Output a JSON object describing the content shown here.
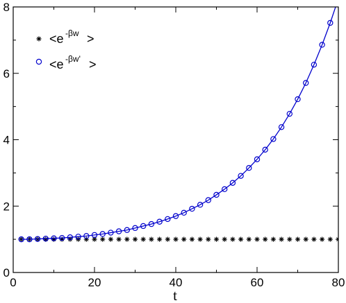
{
  "chart_data": {
    "type": "line",
    "title": "",
    "xlabel": "t",
    "ylabel": "",
    "xlim": [
      0,
      80
    ],
    "ylim": [
      0,
      8
    ],
    "xticks": [
      0,
      20,
      40,
      60,
      80
    ],
    "yticks": [
      0,
      2,
      4,
      6,
      8
    ],
    "grid": false,
    "legend_position": "top-left",
    "series": [
      {
        "name": "<e^{-βw}>",
        "legend_main": "<e",
        "legend_sup": "-βw",
        "legend_tail": ">",
        "marker": "asterisk",
        "color": "#000000",
        "x": [
          2,
          4,
          6,
          8,
          10,
          12,
          14,
          16,
          18,
          20,
          22,
          24,
          26,
          28,
          30,
          32,
          34,
          36,
          38,
          40,
          42,
          44,
          46,
          48,
          50,
          52,
          54,
          56,
          58,
          60,
          62,
          64,
          66,
          68,
          70,
          72,
          74,
          76,
          78,
          80
        ],
        "y": [
          1,
          1,
          1,
          1,
          1,
          1,
          1,
          1,
          1,
          1,
          1,
          1,
          1,
          1,
          1,
          1,
          1,
          1,
          1,
          1,
          1,
          1,
          1,
          1,
          1,
          1,
          1,
          1,
          1,
          1,
          1,
          1,
          1,
          1,
          1,
          1,
          1,
          1,
          1,
          1
        ]
      },
      {
        "name": "<e^{-βw'}>",
        "legend_main": "<e",
        "legend_sup": "-βw'",
        "legend_tail": ">",
        "marker": "open-circle",
        "color": "#0000cc",
        "line": true,
        "x": [
          2,
          4,
          6,
          8,
          10,
          12,
          14,
          16,
          18,
          20,
          22,
          24,
          26,
          28,
          30,
          32,
          34,
          36,
          38,
          40,
          42,
          44,
          46,
          48,
          50,
          52,
          54,
          56,
          58,
          60,
          62,
          64,
          66,
          68,
          70,
          72,
          74,
          76,
          78,
          80
        ],
        "y": [
          1.0,
          1.0,
          1.01,
          1.02,
          1.03,
          1.04,
          1.06,
          1.08,
          1.1,
          1.13,
          1.16,
          1.2,
          1.24,
          1.28,
          1.34,
          1.4,
          1.46,
          1.53,
          1.61,
          1.7,
          1.8,
          1.92,
          2.04,
          2.18,
          2.34,
          2.51,
          2.7,
          2.91,
          3.15,
          3.41,
          3.7,
          4.02,
          4.38,
          4.78,
          5.22,
          5.71,
          6.26,
          6.86,
          7.52,
          8.25
        ]
      }
    ]
  }
}
